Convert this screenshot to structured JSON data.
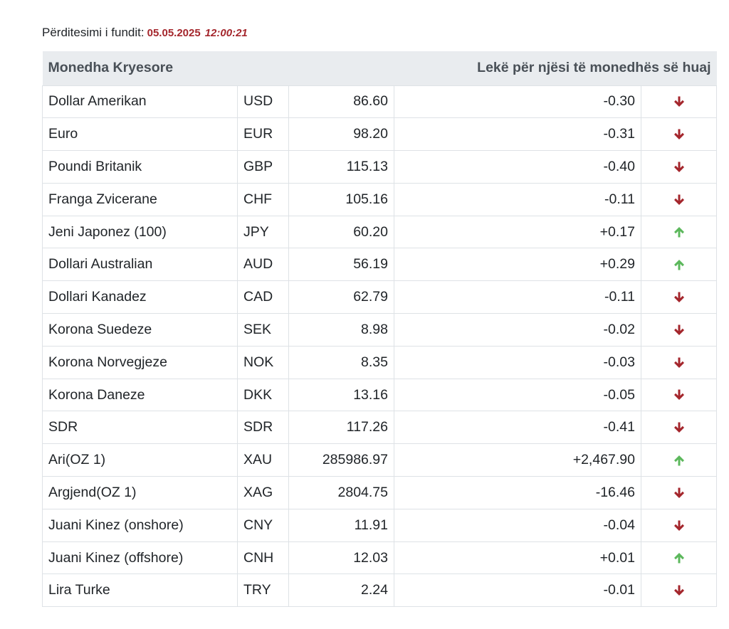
{
  "last_update": {
    "label": "Përditesimi i fundit:",
    "date": "05.05.2025",
    "time": "12:00:21"
  },
  "colors": {
    "down": "#a4262c",
    "up": "#5cb85c",
    "header_bg": "#e9ecef"
  },
  "table": {
    "headers": {
      "left": "Monedha Kryesore",
      "right": "Lekë për njësi të monedhës së huaj"
    },
    "rows": [
      {
        "name": "Dollar Amerikan",
        "code": "USD",
        "rate": "86.60",
        "change": "-0.30",
        "direction": "down"
      },
      {
        "name": "Euro",
        "code": "EUR",
        "rate": "98.20",
        "change": "-0.31",
        "direction": "down"
      },
      {
        "name": "Poundi Britanik",
        "code": "GBP",
        "rate": "115.13",
        "change": "-0.40",
        "direction": "down"
      },
      {
        "name": "Franga Zvicerane",
        "code": "CHF",
        "rate": "105.16",
        "change": "-0.11",
        "direction": "down"
      },
      {
        "name": "Jeni Japonez (100)",
        "code": "JPY",
        "rate": "60.20",
        "change": "+0.17",
        "direction": "up"
      },
      {
        "name": "Dollari Australian",
        "code": "AUD",
        "rate": "56.19",
        "change": "+0.29",
        "direction": "up"
      },
      {
        "name": "Dollari Kanadez",
        "code": "CAD",
        "rate": "62.79",
        "change": "-0.11",
        "direction": "down"
      },
      {
        "name": "Korona Suedeze",
        "code": "SEK",
        "rate": "8.98",
        "change": "-0.02",
        "direction": "down"
      },
      {
        "name": "Korona Norvegjeze",
        "code": "NOK",
        "rate": "8.35",
        "change": "-0.03",
        "direction": "down"
      },
      {
        "name": "Korona Daneze",
        "code": "DKK",
        "rate": "13.16",
        "change": "-0.05",
        "direction": "down"
      },
      {
        "name": "SDR",
        "code": "SDR",
        "rate": "117.26",
        "change": "-0.41",
        "direction": "down"
      },
      {
        "name": "Ari(OZ 1)",
        "code": "XAU",
        "rate": "285986.97",
        "change": "+2,467.90",
        "direction": "up"
      },
      {
        "name": "Argjend(OZ 1)",
        "code": "XAG",
        "rate": "2804.75",
        "change": "-16.46",
        "direction": "down"
      },
      {
        "name": "Juani Kinez (onshore)",
        "code": "CNY",
        "rate": "11.91",
        "change": "-0.04",
        "direction": "down"
      },
      {
        "name": "Juani Kinez (offshore)",
        "code": "CNH",
        "rate": "12.03",
        "change": "+0.01",
        "direction": "up"
      },
      {
        "name": "Lira Turke",
        "code": "TRY",
        "rate": "2.24",
        "change": "-0.01",
        "direction": "down"
      }
    ]
  }
}
